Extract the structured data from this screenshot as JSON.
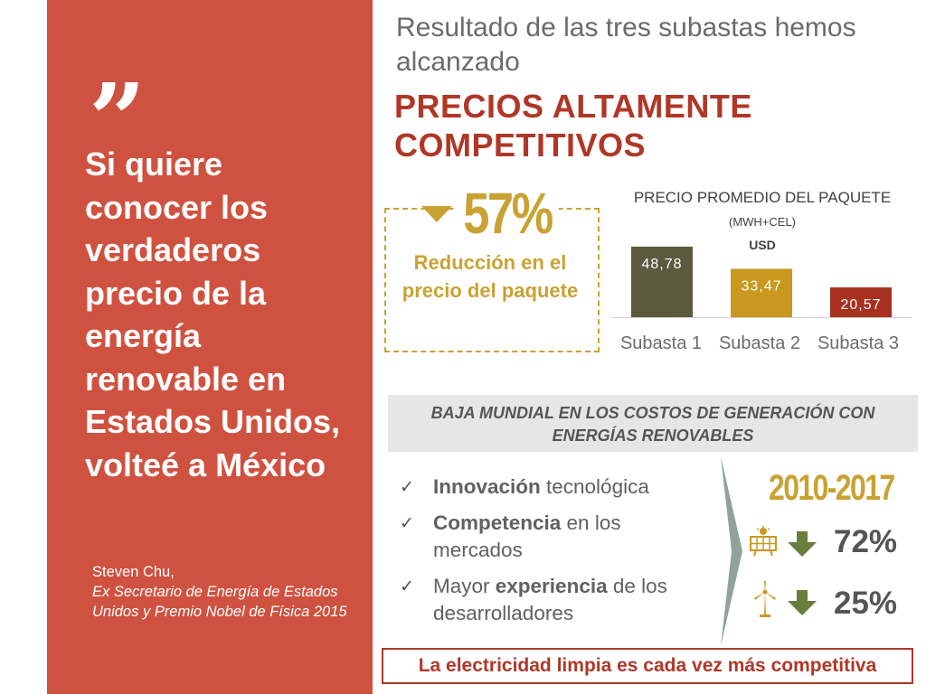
{
  "quote": {
    "mark": "”",
    "text": "Si quiere conocer los verdaderos precio de la energía renovable en Estados Unidos, volteé a México",
    "author": "Steven Chu,",
    "role": "Ex Secretario de Energía de Estados Unidos y Premio Nobel de Física 2015"
  },
  "header": {
    "line1": "Resultado de las tres subastas hemos alcanzado",
    "line2": "PRECIOS ALTAMENTE COMPETITIVOS"
  },
  "reduction": {
    "percent": "57%",
    "description": "Reducción en el precio del paquete"
  },
  "chart_title": {
    "main": "PRECIO  PROMEDIO DEL PAQUETE",
    "unit": "(MWH+CEL)",
    "currency": "USD"
  },
  "chart_data": {
    "type": "bar",
    "title": "PRECIO PROMEDIO DEL PAQUETE (MWH+CEL) USD",
    "categories": [
      "Subasta 1",
      "Subasta 2",
      "Subasta 3"
    ],
    "values": [
      48.78,
      33.47,
      20.57
    ],
    "value_labels": [
      "48,78",
      "33,47",
      "20,57"
    ],
    "colors": [
      "#5b5a3e",
      "#c9981f",
      "#a8301f"
    ],
    "ylim": [
      0,
      50
    ],
    "grid": false
  },
  "banner": {
    "text": "BAJA MUNDIAL EN LOS COSTOS DE GENERACIÓN CON ENERGÍAS RENOVABLES"
  },
  "bullets": [
    {
      "check": "✓",
      "keyword": "Innovación",
      "rest": " tecnológica"
    },
    {
      "check": "✓",
      "keyword": "Competencia",
      "rest": " en los mercados"
    },
    {
      "check": "✓",
      "lead": "Mayor ",
      "keyword": "experiencia",
      "rest": " de los desarrolladores"
    }
  ],
  "cost_drop": {
    "period": "2010-2017",
    "solar_pct": "72%",
    "wind_pct": "25%",
    "solar_icon": "solar-panel-icon",
    "wind_icon": "wind-turbine-icon",
    "arrow_icon": "arrow-down-icon"
  },
  "footer": {
    "text": "La electricidad limpia es cada vez más competitiva"
  },
  "colors": {
    "panel": "#cf5240",
    "accent_red": "#b03727",
    "gold": "#c9a233",
    "green": "#6a7d3e",
    "gray_text": "#606060"
  }
}
